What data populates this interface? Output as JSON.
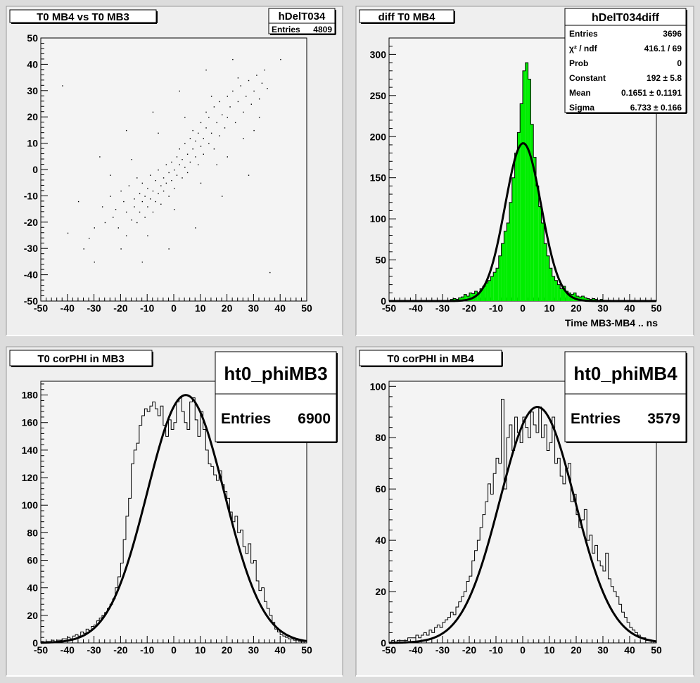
{
  "charts": [
    {
      "type": "scatter",
      "title": "T0 MB4 vs T0 MB3",
      "stats": {
        "name": "hDelT034",
        "rows": [
          [
            "Entries",
            "4809"
          ]
        ]
      },
      "xlabel": "",
      "ylabel": "",
      "xlim": [
        -50,
        50
      ],
      "ylim": [
        -50,
        50
      ],
      "xticks": [
        "-50",
        "-40",
        "-30",
        "-20",
        "-10",
        "0",
        "10",
        "20",
        "30",
        "40",
        "50"
      ],
      "yticks": [
        "-50",
        "-40",
        "-30",
        "-20",
        "-10",
        "0",
        "10",
        "20",
        "30",
        "40",
        "50"
      ],
      "description_points": "approximate sample of the correlated point cloud (slope ~1, centered near origin)",
      "points": [
        [
          -34,
          -30
        ],
        [
          -30,
          -22
        ],
        [
          -27,
          -14
        ],
        [
          -26,
          -20
        ],
        [
          -24,
          -10
        ],
        [
          -23,
          -18
        ],
        [
          -22,
          -15
        ],
        [
          -21,
          -22
        ],
        [
          -20,
          -8
        ],
        [
          -19,
          -12
        ],
        [
          -18,
          -25
        ],
        [
          -18,
          -16
        ],
        [
          -17,
          -6
        ],
        [
          -16,
          -19
        ],
        [
          -15,
          -11
        ],
        [
          -15,
          -14
        ],
        [
          -14,
          -3
        ],
        [
          -14,
          -20
        ],
        [
          -13,
          -9
        ],
        [
          -13,
          -16
        ],
        [
          -12,
          -12
        ],
        [
          -12,
          -5
        ],
        [
          -11,
          -18
        ],
        [
          -11,
          -10
        ],
        [
          -10,
          -14
        ],
        [
          -10,
          -7
        ],
        [
          -9,
          -2
        ],
        [
          -9,
          -11
        ],
        [
          -8,
          -16
        ],
        [
          -8,
          -8
        ],
        [
          -7,
          -4
        ],
        [
          -7,
          -12
        ],
        [
          -6,
          -9
        ],
        [
          -6,
          0
        ],
        [
          -5,
          -6
        ],
        [
          -5,
          -13
        ],
        [
          -4,
          -3
        ],
        [
          -4,
          -8
        ],
        [
          -3,
          2
        ],
        [
          -3,
          -5
        ],
        [
          -2,
          -10
        ],
        [
          -2,
          -1
        ],
        [
          -1,
          3
        ],
        [
          -1,
          -4
        ],
        [
          0,
          0
        ],
        [
          0,
          -7
        ],
        [
          1,
          5
        ],
        [
          1,
          -2
        ],
        [
          2,
          2
        ],
        [
          2,
          8
        ],
        [
          3,
          -3
        ],
        [
          3,
          4
        ],
        [
          4,
          10
        ],
        [
          4,
          1
        ],
        [
          5,
          6
        ],
        [
          5,
          -1
        ],
        [
          6,
          12
        ],
        [
          6,
          3
        ],
        [
          7,
          8
        ],
        [
          7,
          15
        ],
        [
          8,
          5
        ],
        [
          8,
          11
        ],
        [
          9,
          2
        ],
        [
          9,
          14
        ],
        [
          10,
          9
        ],
        [
          10,
          18
        ],
        [
          11,
          6
        ],
        [
          11,
          12
        ],
        [
          12,
          16
        ],
        [
          12,
          22
        ],
        [
          13,
          10
        ],
        [
          13,
          20
        ],
        [
          14,
          14
        ],
        [
          15,
          24
        ],
        [
          15,
          8
        ],
        [
          16,
          18
        ],
        [
          17,
          26
        ],
        [
          17,
          13
        ],
        [
          18,
          21
        ],
        [
          19,
          16
        ],
        [
          20,
          28
        ],
        [
          20,
          20
        ],
        [
          21,
          24
        ],
        [
          22,
          30
        ],
        [
          23,
          18
        ],
        [
          24,
          26
        ],
        [
          25,
          32
        ],
        [
          26,
          22
        ],
        [
          27,
          28
        ],
        [
          28,
          34
        ],
        [
          29,
          25
        ],
        [
          30,
          30
        ],
        [
          31,
          36
        ],
        [
          32,
          27
        ],
        [
          33,
          33
        ],
        [
          34,
          38
        ],
        [
          35,
          31
        ],
        [
          -40,
          -24
        ],
        [
          40,
          42
        ],
        [
          -28,
          5
        ],
        [
          -18,
          15
        ],
        [
          -8,
          22
        ],
        [
          2,
          30
        ],
        [
          12,
          38
        ],
        [
          22,
          42
        ],
        [
          28,
          -2
        ],
        [
          18,
          -10
        ],
        [
          8,
          -22
        ],
        [
          -2,
          -30
        ],
        [
          -12,
          -35
        ],
        [
          36,
          -39
        ],
        [
          -42,
          32
        ],
        [
          -24,
          -2
        ],
        [
          -16,
          4
        ],
        [
          -6,
          14
        ],
        [
          4,
          20
        ],
        [
          14,
          28
        ],
        [
          24,
          35
        ],
        [
          30,
          15
        ],
        [
          20,
          5
        ],
        [
          10,
          -5
        ],
        [
          0,
          -15
        ],
        [
          -10,
          -25
        ],
        [
          -20,
          -30
        ],
        [
          -30,
          -35
        ],
        [
          -36,
          -12
        ],
        [
          -32,
          -26
        ],
        [
          32,
          20
        ],
        [
          26,
          12
        ],
        [
          16,
          2
        ]
      ]
    },
    {
      "type": "bar",
      "title": "diff T0 MB4",
      "stats": {
        "name": "hDelT034diff",
        "rows": [
          [
            "Entries",
            "3696"
          ],
          [
            "χ² / ndf",
            "416.1 / 69"
          ],
          [
            "Prob",
            "0"
          ],
          [
            "Constant",
            "192 ± 5.8"
          ],
          [
            "Mean",
            "0.1651 ± 0.1191"
          ],
          [
            "Sigma",
            "6.733 ± 0.166"
          ]
        ]
      },
      "xlabel": "Time MB3-MB4  ..  ns",
      "ylabel": "",
      "xlim": [
        -50,
        50
      ],
      "ylim": [
        0,
        320
      ],
      "xticks": [
        "-50",
        "-40",
        "-30",
        "-20",
        "-10",
        "0",
        "10",
        "20",
        "30",
        "40",
        "50"
      ],
      "yticks": [
        "0",
        "50",
        "100",
        "150",
        "200",
        "250",
        "300"
      ],
      "fill_color": "#00ee00",
      "bin_width": 1,
      "bins_x": [
        -27,
        -26,
        -25,
        -24,
        -23,
        -22,
        -21,
        -20,
        -19,
        -18,
        -17,
        -16,
        -15,
        -14,
        -13,
        -12,
        -11,
        -10,
        -9,
        -8,
        -7,
        -6,
        -5,
        -4,
        -3,
        -2,
        -1,
        0,
        1,
        2,
        3,
        4,
        5,
        6,
        7,
        8,
        9,
        10,
        11,
        12,
        13,
        14,
        15,
        16,
        17,
        18,
        19,
        20,
        21,
        22,
        23,
        24,
        25,
        26,
        27,
        28,
        29,
        30,
        31,
        32
      ],
      "values": [
        2,
        3,
        2,
        4,
        5,
        8,
        6,
        10,
        9,
        12,
        10,
        15,
        18,
        22,
        25,
        30,
        35,
        40,
        55,
        70,
        85,
        95,
        120,
        150,
        180,
        205,
        240,
        280,
        290,
        270,
        215,
        175,
        140,
        115,
        95,
        70,
        55,
        40,
        30,
        25,
        20,
        15,
        18,
        12,
        10,
        8,
        10,
        6,
        5,
        6,
        4,
        3,
        2,
        3,
        2,
        1,
        2,
        1,
        1,
        1
      ],
      "fit": {
        "constant": 192,
        "mean": 0.1651,
        "sigma": 6.733
      }
    },
    {
      "type": "bar",
      "title": "T0 corPHI in MB3",
      "stats": {
        "name": "ht0_phiMB3",
        "rows": [
          [
            "Entries",
            "6900"
          ]
        ]
      },
      "xlabel": "",
      "ylabel": "",
      "xlim": [
        -50,
        50
      ],
      "ylim": [
        0,
        190
      ],
      "xticks": [
        "-50",
        "-40",
        "-30",
        "-20",
        "-10",
        "0",
        "10",
        "20",
        "30",
        "40",
        "50"
      ],
      "yticks": [
        "0",
        "20",
        "40",
        "60",
        "80",
        "100",
        "120",
        "140",
        "160",
        "180"
      ],
      "bin_width": 1,
      "bins_x": [
        -50,
        -49,
        -48,
        -47,
        -46,
        -45,
        -44,
        -43,
        -42,
        -41,
        -40,
        -39,
        -38,
        -37,
        -36,
        -35,
        -34,
        -33,
        -32,
        -31,
        -30,
        -29,
        -28,
        -27,
        -26,
        -25,
        -24,
        -23,
        -22,
        -21,
        -20,
        -19,
        -18,
        -17,
        -16,
        -15,
        -14,
        -13,
        -12,
        -11,
        -10,
        -9,
        -8,
        -7,
        -6,
        -5,
        -4,
        -3,
        -2,
        -1,
        0,
        1,
        2,
        3,
        4,
        5,
        6,
        7,
        8,
        9,
        10,
        11,
        12,
        13,
        14,
        15,
        16,
        17,
        18,
        19,
        20,
        21,
        22,
        23,
        24,
        25,
        26,
        27,
        28,
        29,
        30,
        31,
        32,
        33,
        34,
        35,
        36,
        37,
        38,
        39,
        40,
        41,
        42,
        43,
        44,
        45,
        46,
        47,
        48,
        49
      ],
      "values": [
        1,
        0,
        1,
        1,
        2,
        1,
        2,
        2,
        3,
        3,
        4,
        3,
        5,
        6,
        5,
        8,
        7,
        10,
        9,
        12,
        13,
        16,
        18,
        20,
        22,
        25,
        28,
        32,
        40,
        48,
        58,
        75,
        92,
        105,
        130,
        140,
        145,
        158,
        165,
        170,
        168,
        172,
        175,
        170,
        165,
        172,
        158,
        150,
        162,
        155,
        160,
        175,
        178,
        168,
        160,
        155,
        175,
        178,
        162,
        150,
        168,
        155,
        140,
        130,
        128,
        122,
        118,
        125,
        115,
        110,
        105,
        95,
        88,
        92,
        80,
        82,
        70,
        65,
        72,
        58,
        60,
        45,
        38,
        40,
        30,
        25,
        20,
        15,
        10,
        8,
        6,
        5,
        4,
        3,
        3,
        2,
        2,
        1,
        1,
        0
      ],
      "fit": {
        "constant": 180,
        "mean": 4.5,
        "sigma": 14.5
      }
    },
    {
      "type": "bar",
      "title": "T0 corPHI in MB4",
      "stats": {
        "name": "ht0_phiMB4",
        "rows": [
          [
            "Entries",
            "3579"
          ]
        ]
      },
      "xlabel": "",
      "ylabel": "",
      "xlim": [
        -50,
        50
      ],
      "ylim": [
        0,
        102
      ],
      "xticks": [
        "-50",
        "-40",
        "-30",
        "-20",
        "-10",
        "0",
        "10",
        "20",
        "30",
        "40",
        "50"
      ],
      "yticks": [
        "0",
        "20",
        "40",
        "60",
        "80",
        "100"
      ],
      "bin_width": 1,
      "bins_x": [
        -50,
        -49,
        -48,
        -47,
        -46,
        -45,
        -44,
        -43,
        -42,
        -41,
        -40,
        -39,
        -38,
        -37,
        -36,
        -35,
        -34,
        -33,
        -32,
        -31,
        -30,
        -29,
        -28,
        -27,
        -26,
        -25,
        -24,
        -23,
        -22,
        -21,
        -20,
        -19,
        -18,
        -17,
        -16,
        -15,
        -14,
        -13,
        -12,
        -11,
        -10,
        -9,
        -8,
        -7,
        -6,
        -5,
        -4,
        -3,
        -2,
        -1,
        0,
        1,
        2,
        3,
        4,
        5,
        6,
        7,
        8,
        9,
        10,
        11,
        12,
        13,
        14,
        15,
        16,
        17,
        18,
        19,
        20,
        21,
        22,
        23,
        24,
        25,
        26,
        27,
        28,
        29,
        30,
        31,
        32,
        33,
        34,
        35,
        36,
        37,
        38,
        39,
        40,
        41,
        42,
        43,
        44,
        45,
        46,
        47,
        48,
        49
      ],
      "values": [
        0,
        1,
        0,
        1,
        1,
        1,
        1,
        2,
        2,
        2,
        3,
        2,
        3,
        4,
        3,
        5,
        4,
        6,
        7,
        6,
        8,
        9,
        10,
        12,
        11,
        14,
        16,
        18,
        20,
        24,
        26,
        32,
        36,
        40,
        45,
        50,
        55,
        62,
        58,
        66,
        72,
        70,
        95,
        60,
        80,
        85,
        75,
        88,
        82,
        78,
        88,
        84,
        80,
        90,
        85,
        82,
        92,
        80,
        85,
        75,
        78,
        88,
        70,
        72,
        65,
        62,
        68,
        70,
        55,
        58,
        50,
        45,
        48,
        52,
        40,
        42,
        35,
        38,
        32,
        30,
        28,
        35,
        25,
        22,
        20,
        18,
        15,
        12,
        10,
        8,
        6,
        5,
        4,
        3,
        2,
        2,
        1,
        1,
        1,
        0
      ],
      "fit": {
        "constant": 92,
        "mean": 5.5,
        "sigma": 14
      }
    }
  ]
}
